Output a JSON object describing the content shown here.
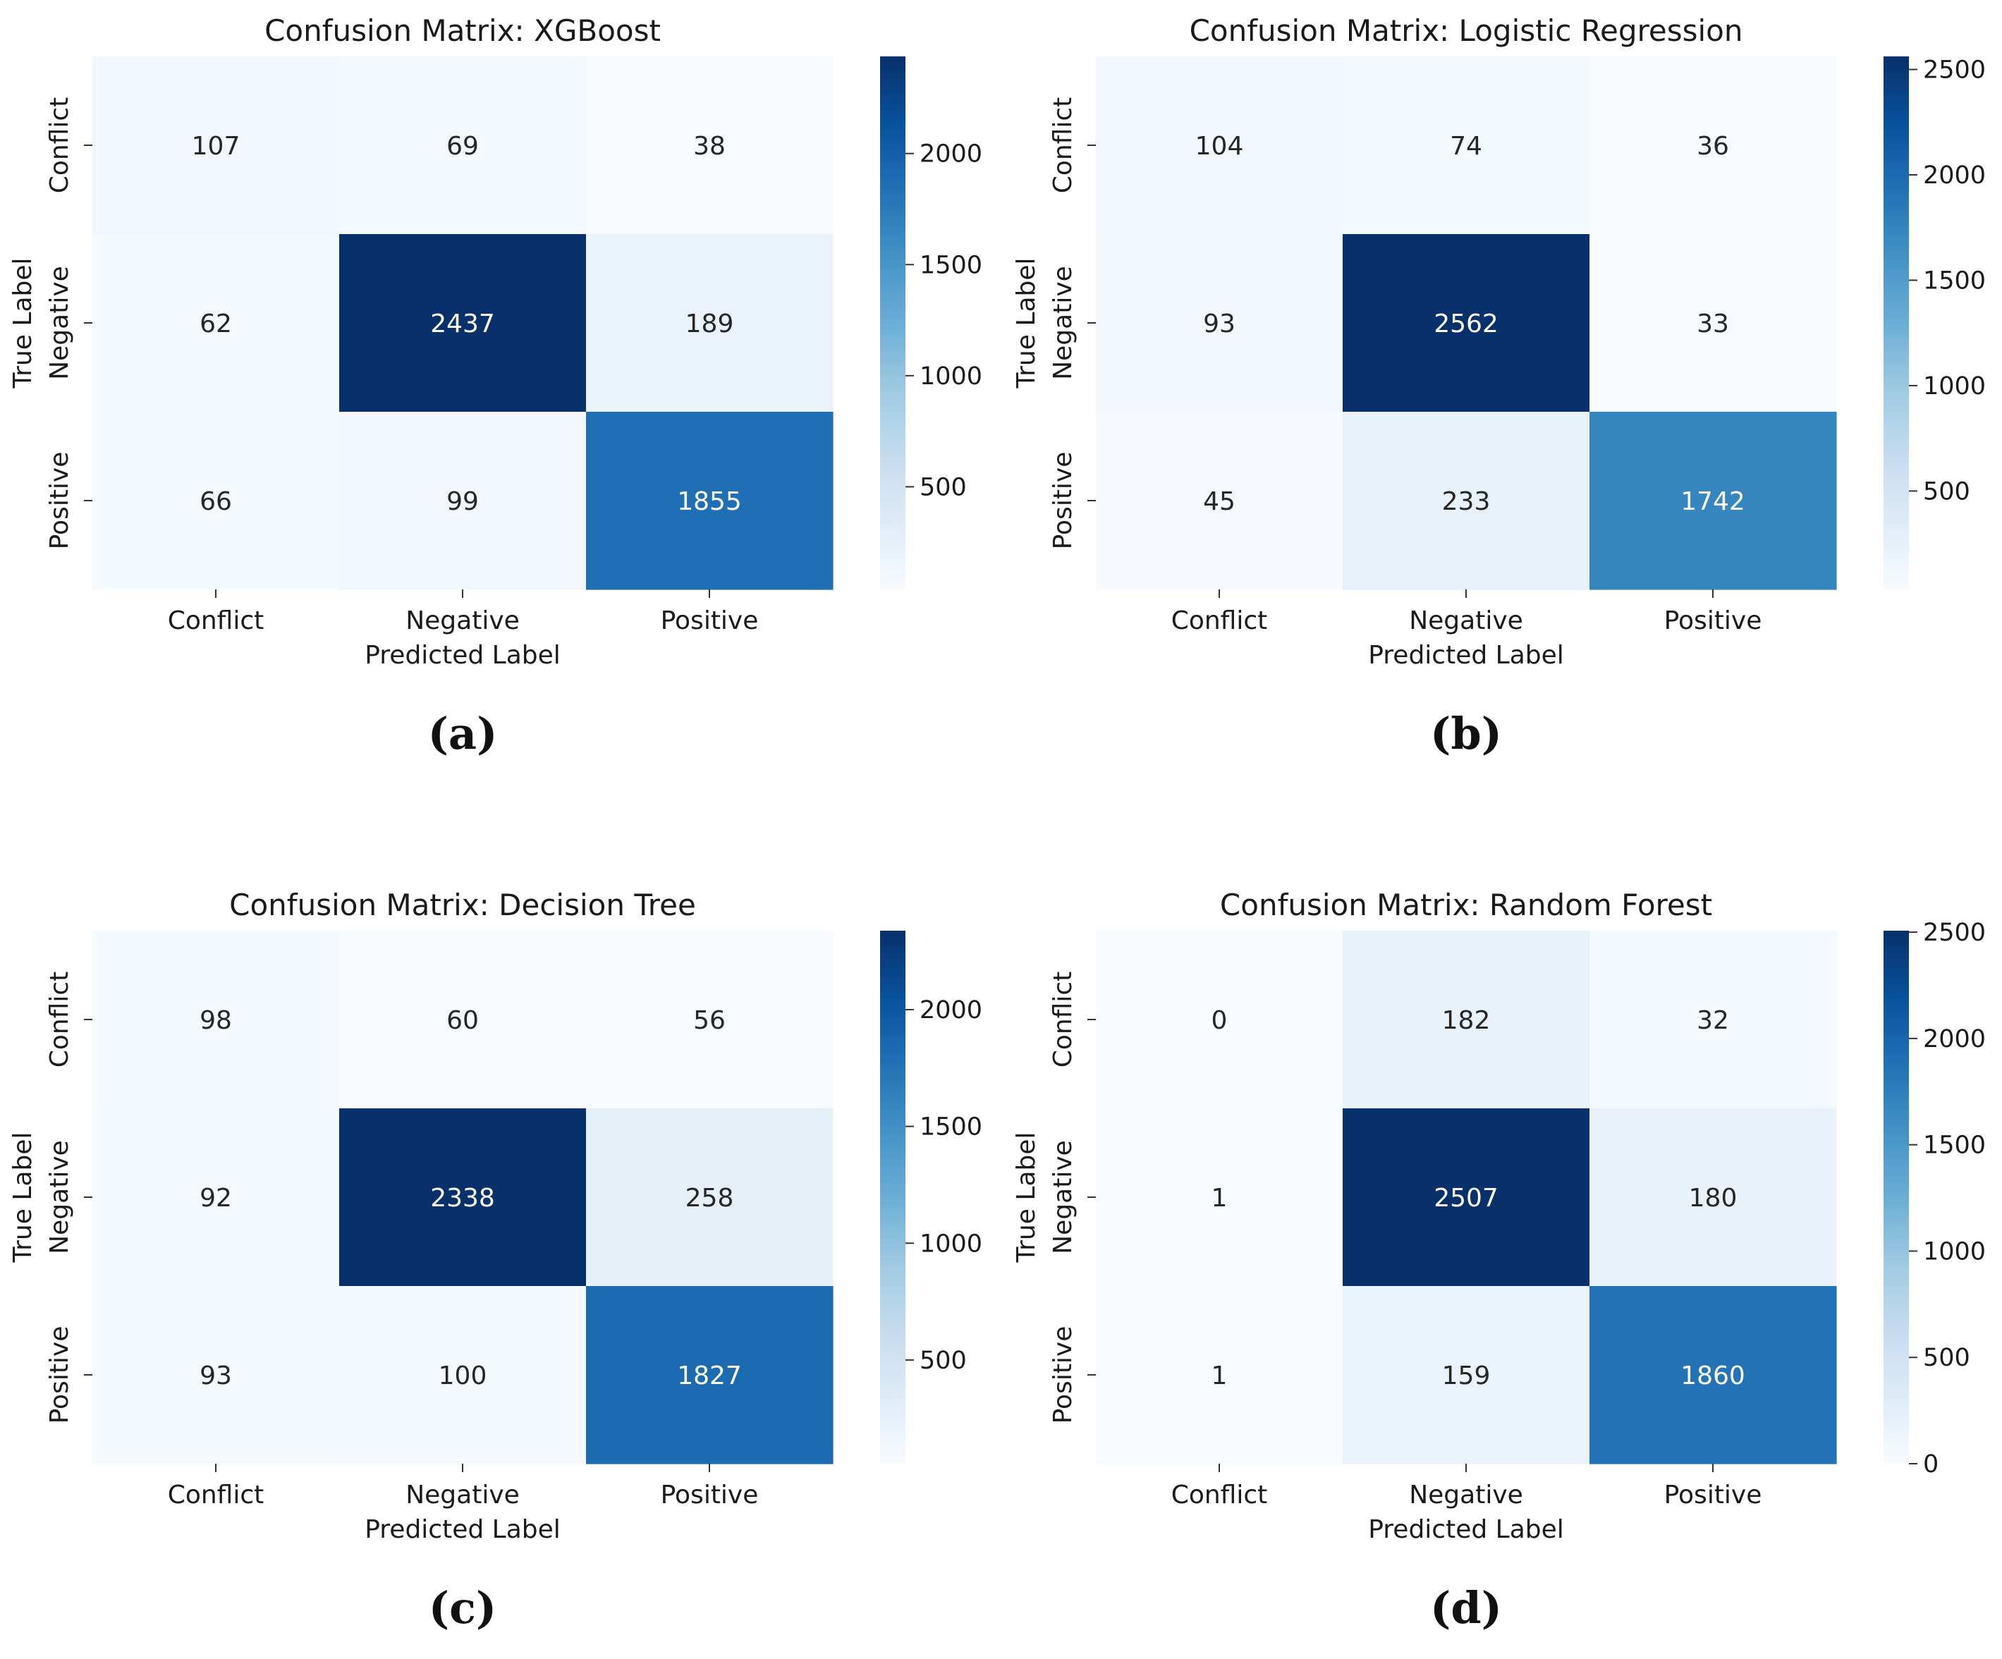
{
  "chart_data": [
    {
      "type": "heatmap",
      "title": "Confusion Matrix: XGBoost",
      "caption": "(a)",
      "xlabel": "Predicted Label",
      "ylabel": "True Label",
      "x_categories": [
        "Conflict",
        "Negative",
        "Positive"
      ],
      "y_categories": [
        "Conflict",
        "Negative",
        "Positive"
      ],
      "values": [
        [
          107,
          69,
          38
        ],
        [
          62,
          2437,
          189
        ],
        [
          66,
          99,
          1855
        ]
      ],
      "colormap": "Blues",
      "vmin": 38,
      "vmax": 2437,
      "colorbar_ticks": [
        500,
        1000,
        1500,
        2000
      ]
    },
    {
      "type": "heatmap",
      "title": "Confusion Matrix: Logistic Regression",
      "caption": "(b)",
      "xlabel": "Predicted Label",
      "ylabel": "True Label",
      "x_categories": [
        "Conflict",
        "Negative",
        "Positive"
      ],
      "y_categories": [
        "Conflict",
        "Negative",
        "Positive"
      ],
      "values": [
        [
          104,
          74,
          36
        ],
        [
          93,
          2562,
          33
        ],
        [
          45,
          233,
          1742
        ]
      ],
      "colormap": "Blues",
      "vmin": 33,
      "vmax": 2562,
      "colorbar_ticks": [
        500,
        1000,
        1500,
        2000,
        2500
      ]
    },
    {
      "type": "heatmap",
      "title": "Confusion Matrix: Decision Tree",
      "caption": "(c)",
      "xlabel": "Predicted Label",
      "ylabel": "True Label",
      "x_categories": [
        "Conflict",
        "Negative",
        "Positive"
      ],
      "y_categories": [
        "Conflict",
        "Negative",
        "Positive"
      ],
      "values": [
        [
          98,
          60,
          56
        ],
        [
          92,
          2338,
          258
        ],
        [
          93,
          100,
          1827
        ]
      ],
      "colormap": "Blues",
      "vmin": 56,
      "vmax": 2338,
      "colorbar_ticks": [
        500,
        1000,
        1500,
        2000
      ]
    },
    {
      "type": "heatmap",
      "title": "Confusion Matrix: Random Forest",
      "caption": "(d)",
      "xlabel": "Predicted Label",
      "ylabel": "True Label",
      "x_categories": [
        "Conflict",
        "Negative",
        "Positive"
      ],
      "y_categories": [
        "Conflict",
        "Negative",
        "Positive"
      ],
      "values": [
        [
          0,
          182,
          32
        ],
        [
          1,
          2507,
          180
        ],
        [
          1,
          159,
          1860
        ]
      ],
      "colormap": "Blues",
      "vmin": 0,
      "vmax": 2507,
      "colorbar_ticks": [
        0,
        500,
        1000,
        1500,
        2000,
        2500
      ]
    }
  ]
}
